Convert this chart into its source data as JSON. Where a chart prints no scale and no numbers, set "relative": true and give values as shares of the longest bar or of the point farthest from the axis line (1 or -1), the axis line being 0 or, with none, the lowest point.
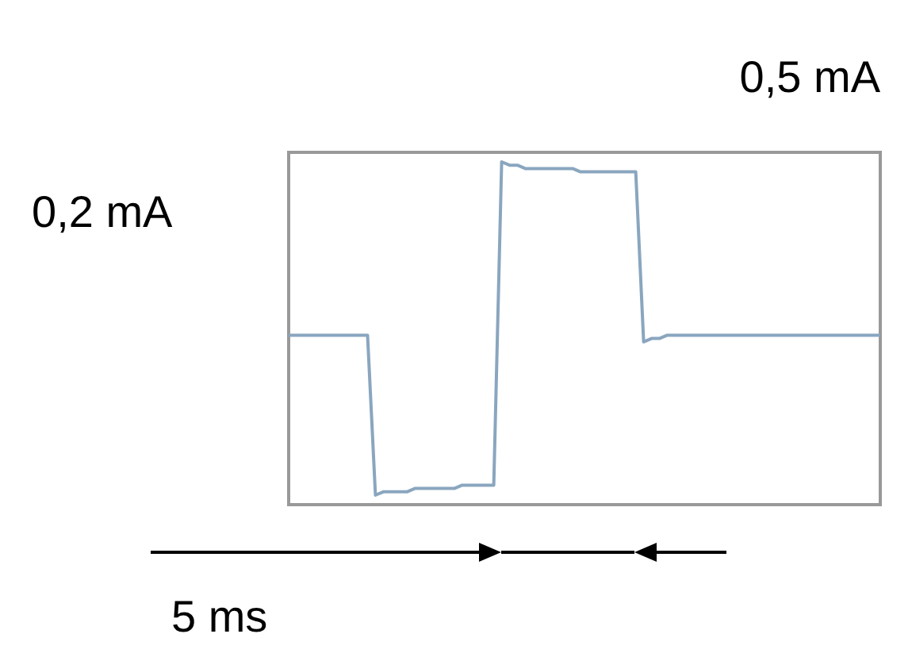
{
  "chart_data": {
    "type": "line",
    "relative": true,
    "legend": false,
    "marker": "none",
    "color": "#8aa6bf",
    "categories": [
      null,
      null,
      null,
      null,
      null,
      null,
      null,
      null,
      null,
      null,
      null,
      null,
      null,
      null,
      null,
      null,
      null,
      null,
      null,
      null,
      null,
      null,
      null,
      null,
      null,
      null,
      null,
      null,
      null,
      null,
      null,
      null,
      null,
      null,
      null,
      null,
      null,
      null,
      null,
      null,
      null,
      null,
      null,
      null,
      null,
      null,
      null,
      null,
      null,
      null,
      null,
      null,
      null,
      null,
      null,
      null,
      null,
      null,
      null,
      null,
      null,
      null,
      null,
      null,
      null,
      null,
      null,
      null,
      null,
      null,
      null,
      null,
      null,
      null,
      null,
      null
    ],
    "values": [
      0.48,
      0.48,
      0.48,
      0.48,
      0.48,
      0.48,
      0.48,
      0.48,
      0.48,
      0.48,
      0.48,
      0,
      0.01,
      0.01,
      0.01,
      0.01,
      0.02,
      0.02,
      0.02,
      0.02,
      0.02,
      0.02,
      0.03,
      0.03,
      0.03,
      0.03,
      0.03,
      1,
      0.99,
      0.99,
      0.98,
      0.98,
      0.98,
      0.98,
      0.98,
      0.98,
      0.98,
      0.97,
      0.97,
      0.97,
      0.97,
      0.97,
      0.97,
      0.97,
      0.97,
      0.46,
      0.47,
      0.47,
      0.48,
      0.48,
      0.48,
      0.48,
      0.48,
      0.48,
      0.48,
      0.48,
      0.48,
      0.48,
      0.48,
      0.48,
      0.48,
      0.48,
      0.48,
      0.48,
      0.48,
      0.48,
      0.48,
      0.48,
      0.48,
      0.48,
      0.48,
      0.48,
      0.48,
      0.48,
      0.48,
      0.48
    ],
    "annotations": [
      "0,2 mA",
      "0,5 mA",
      "5 ms"
    ]
  }
}
